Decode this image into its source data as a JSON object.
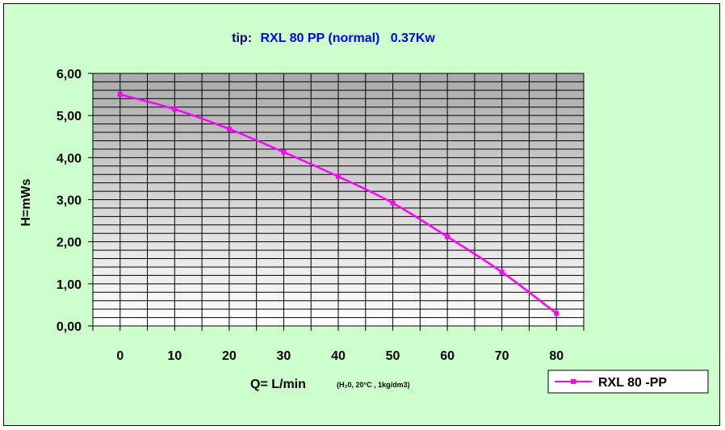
{
  "chart_data": {
    "type": "line",
    "title_prefix": "tip:",
    "title_main": "RXL 80 PP (normal)   0.37Kw",
    "xlabel": "Q= L/min",
    "xlabel_note": "(H₂0, 20°C , 1kg/dm3)",
    "ylabel": "H=mWs",
    "x_ticks": [
      "0",
      "10",
      "20",
      "30",
      "40",
      "50",
      "60",
      "70",
      "80"
    ],
    "y_ticks": [
      "0,00",
      "1,00",
      "2,00",
      "3,00",
      "4,00",
      "5,00",
      "6,00"
    ],
    "xlim": [
      -5,
      85
    ],
    "ylim": [
      0,
      6
    ],
    "y_minor_step": 0.2,
    "grid": true,
    "legend_position": "bottom-right",
    "series": [
      {
        "name": "RXL 80 -PP",
        "color": "#ff00ff",
        "x": [
          0,
          10,
          20,
          30,
          40,
          50,
          60,
          70,
          80
        ],
        "y": [
          5.5,
          5.15,
          4.68,
          4.13,
          3.55,
          2.92,
          2.12,
          1.28,
          0.3
        ]
      }
    ]
  }
}
